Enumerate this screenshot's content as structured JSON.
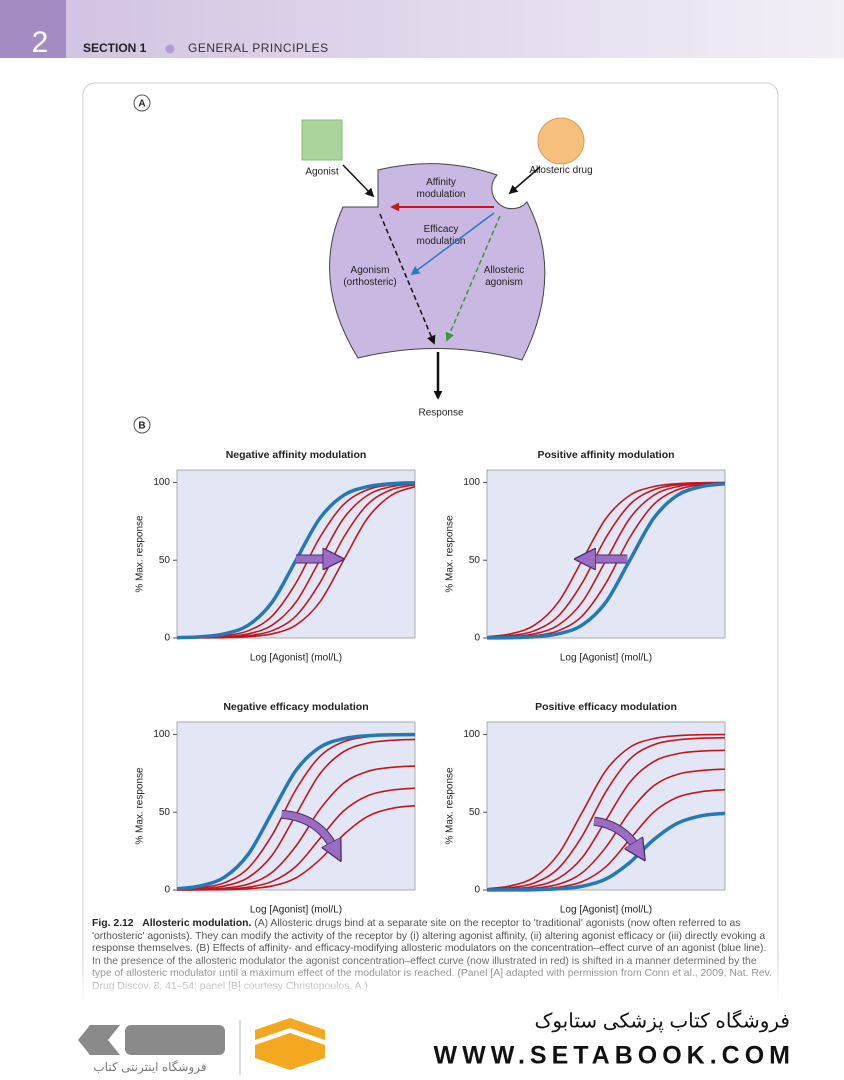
{
  "header": {
    "page_number": "2",
    "section": "SECTION 1",
    "chapter": "GENERAL PRINCIPLES"
  },
  "diagram": {
    "panel_label": "A",
    "agonist": "Agonist",
    "allosteric_drug": "Allosteric drug",
    "affinity": "Affinity modulation",
    "efficacy": "Efficacy modulation",
    "agonism": "Agonism (orthosteric)",
    "allosteric_agonism": "Allosteric agonism",
    "response": "Response"
  },
  "panel_b_label": "B",
  "chart_data": [
    {
      "type": "line",
      "title": "Negative affinity modulation",
      "x_label": "Log [Agonist] (mol/L)",
      "y_label": "% Max. response",
      "x": [
        0,
        1,
        2,
        3,
        4,
        5,
        6,
        7,
        8,
        9,
        10
      ],
      "xlim": [
        0,
        10
      ],
      "ylim": [
        0,
        108
      ],
      "yticks": [
        0,
        50,
        100
      ],
      "series": [
        {
          "color": "#c0171f",
          "values": [
            0.1,
            0.4,
            1.5,
            4.7,
            14.2,
            35.4,
            64.6,
            85.8,
            95.3,
            98.5,
            99.6
          ]
        },
        {
          "color": "#c0171f",
          "values": [
            0.1,
            0.2,
            0.8,
            2.7,
            8.3,
            23.1,
            50,
            76.9,
            91.7,
            97.3,
            99.2
          ]
        },
        {
          "color": "#c0171f",
          "values": [
            0.0,
            0.1,
            0.4,
            1.5,
            4.7,
            14.2,
            35.4,
            64.6,
            85.8,
            95.3,
            98.5
          ]
        },
        {
          "color": "#c0171f",
          "values": [
            0.0,
            0.1,
            0.2,
            0.8,
            2.7,
            8.3,
            23.1,
            50,
            76.9,
            91.7,
            97.3
          ]
        },
        {
          "color": "#2378b5",
          "values": [
            0.2,
            0.8,
            2.7,
            8.3,
            23.1,
            50,
            76.9,
            91.7,
            97.3,
            99.2,
            99.8
          ]
        }
      ]
    },
    {
      "type": "line",
      "title": "Positive affinity modulation",
      "x_label": "Log [Agonist] (mol/L)",
      "y_label": "% Max. response",
      "x": [
        0,
        1,
        2,
        3,
        4,
        5,
        6,
        7,
        8,
        9,
        10
      ],
      "xlim": [
        0,
        10
      ],
      "ylim": [
        0,
        108
      ],
      "yticks": [
        0,
        50,
        100
      ],
      "series": [
        {
          "color": "#c0171f",
          "values": [
            0.1,
            0.4,
            1.5,
            4.7,
            14.2,
            35.4,
            64.6,
            85.8,
            95.3,
            98.5,
            99.6
          ]
        },
        {
          "color": "#c0171f",
          "values": [
            0.2,
            0.8,
            2.7,
            8.3,
            23.1,
            50,
            76.9,
            91.7,
            97.3,
            99.2,
            99.8
          ]
        },
        {
          "color": "#c0171f",
          "values": [
            0.5,
            1.5,
            4.7,
            14.2,
            35.4,
            64.6,
            85.8,
            95.3,
            98.5,
            99.6,
            99.9
          ]
        },
        {
          "color": "#c0171f",
          "values": [
            0.8,
            2.7,
            8.3,
            23.1,
            50,
            76.9,
            91.7,
            97.3,
            99.2,
            99.8,
            99.9
          ]
        },
        {
          "color": "#2378b5",
          "values": [
            0.1,
            0.2,
            0.8,
            2.7,
            8.3,
            23.1,
            50,
            76.9,
            91.7,
            97.3,
            99.2
          ]
        }
      ]
    },
    {
      "type": "line",
      "title": "Negative efficacy modulation",
      "x_label": "Log [Agonist] (mol/L)",
      "y_label": "% Max. response",
      "x": [
        0,
        1,
        2,
        3,
        4,
        5,
        6,
        7,
        8,
        9,
        10
      ],
      "xlim": [
        0,
        10
      ],
      "ylim": [
        0,
        108
      ],
      "yticks": [
        0,
        50,
        100
      ],
      "series": [
        {
          "color": "#c0171f",
          "values": [
            0.5,
            1.5,
            4.7,
            14.2,
            35.4,
            64.6,
            85.8,
            95.3,
            98.5,
            99.6,
            99.9
          ]
        },
        {
          "color": "#c0171f",
          "values": [
            0.2,
            0.8,
            2.6,
            8.1,
            22.4,
            48.5,
            74.6,
            88.9,
            94.4,
            96.2,
            96.8
          ]
        },
        {
          "color": "#c0171f",
          "values": [
            0.1,
            0.3,
            1.2,
            3.8,
            11.4,
            28.3,
            51.7,
            68.6,
            76.2,
            78.8,
            79.7
          ]
        },
        {
          "color": "#c0171f",
          "values": [
            0.1,
            0.1,
            0.5,
            1.8,
            5.5,
            15.2,
            33,
            50.8,
            60.5,
            64.2,
            65.5
          ]
        },
        {
          "color": "#c0171f",
          "values": [
            0,
            0.1,
            0.2,
            0.8,
            2.6,
            7.8,
            19.5,
            35.5,
            47.2,
            52.4,
            54.2
          ]
        },
        {
          "color": "#2378b5",
          "values": [
            0.8,
            2.7,
            8.3,
            23.1,
            50,
            76.9,
            91.7,
            97.3,
            99.2,
            99.8,
            99.9
          ]
        }
      ]
    },
    {
      "type": "line",
      "title": "Positive efficacy modulation",
      "x_label": "Log [Agonist] (mol/L)",
      "y_label": "% Max. response",
      "x": [
        0,
        1,
        2,
        3,
        4,
        5,
        6,
        7,
        8,
        9,
        10
      ],
      "xlim": [
        0,
        10
      ],
      "ylim": [
        0,
        108
      ],
      "yticks": [
        0,
        50,
        100
      ],
      "series": [
        {
          "color": "#c0171f",
          "values": [
            0.8,
            2.7,
            8.3,
            23.1,
            50,
            76.9,
            91.7,
            97.3,
            99.2,
            99.8,
            99.9
          ]
        },
        {
          "color": "#c0171f",
          "values": [
            0.5,
            1.5,
            4.6,
            13.9,
            34.7,
            63.3,
            84.1,
            93.4,
            96.5,
            97.6,
            97.9
          ]
        },
        {
          "color": "#c0171f",
          "values": [
            0.2,
            0.7,
            2.4,
            7.5,
            20.8,
            45,
            69.2,
            82.5,
            87.6,
            89.3,
            89.8
          ]
        },
        {
          "color": "#c0171f",
          "values": [
            0.1,
            0.3,
            1.2,
            3.7,
            11.1,
            27.6,
            50.4,
            66.9,
            74.3,
            76.8,
            77.7
          ]
        },
        {
          "color": "#c0171f",
          "values": [
            0.1,
            0.1,
            0.5,
            1.8,
            5.4,
            15,
            32.5,
            50,
            59.6,
            63.2,
            64.5
          ]
        },
        {
          "color": "#2378b5",
          "values": [
            0,
            0.1,
            0.2,
            0.8,
            2.4,
            7.1,
            17.7,
            32.3,
            42.9,
            47.7,
            49.3
          ]
        }
      ]
    }
  ],
  "caption": {
    "figure": "Fig. 2.12",
    "title": "Allosteric modulation.",
    "text": "(A) Allosteric drugs bind at a separate site on the receptor to 'traditional' agonists (now often referred to as 'orthosteric' agonists). They can modify the activity of the receptor by (i) altering agonist affinity, (ii) altering agonist efficacy or (iii) directly evoking a response themselves. (B) Effects of affinity- and efficacy-modifying allosteric modulators on the concentration–effect curve of an agonist (blue line). In the presence of the allosteric modulator the agonist concentration–effect curve (now illustrated in red) is shifted in a manner determined by the type of allosteric modulator until a maximum effect of the modulator is reached. (Panel [A] adapted with permission from Conn et al., 2009, Nat. Rev. Drug Discov. 8, 41–54; panel [B] courtesy Christopoulos, A.)"
  },
  "footer": {
    "store_name": "فروشگاه کتاب پزشکی ستابوک",
    "url": "WWW.SETABOOK.COM",
    "logo_text": "فروشگاه اینترنتی کتاب"
  }
}
